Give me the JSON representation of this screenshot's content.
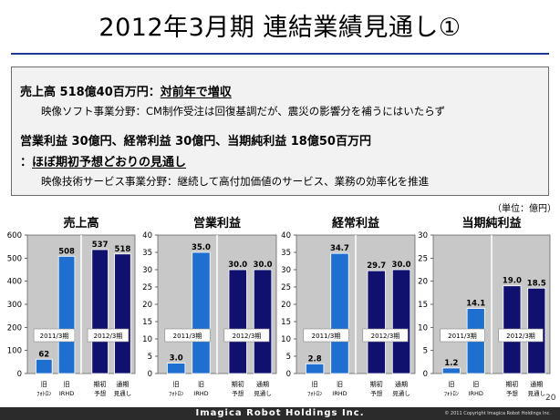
{
  "slide": {
    "title": "2012年3月期 連結業績見通し①",
    "unit": "（単位：億円）",
    "page_number": "20",
    "footer_brand": "Imagica Robot Holdings Inc.",
    "footer_copyright": "© 2011 Copyright Imagica Robot Holdings Inc."
  },
  "summary": {
    "line1_prefix": "売上高 518億40百万円：",
    "line1_emph": "対前年で増収",
    "line2": "映像ソフト事業分野：CM制作受注は回復基調だが、震災の影響分を補うにはいたらず",
    "line3": "営業利益 30億円、経常利益 30億円、当期純利益 18億50百万円",
    "line4_prefix": "：",
    "line4_emph": "ほぼ期初予想どおりの見通し",
    "line5": "映像技術サービス事業分野：継続して高付加価値のサービス、業務の効率化を推進"
  },
  "chart_data": [
    {
      "type": "bar",
      "title": "売上高",
      "ylim": [
        0,
        600
      ],
      "yticks": [
        0,
        100,
        200,
        300,
        400,
        500,
        600
      ],
      "period_labels": [
        "2011/3期",
        "2012/3期"
      ],
      "categories": [
        {
          "line1": "旧",
          "line2": "ﾌｫﾄﾛﾝ"
        },
        {
          "line1": "旧",
          "line2": "IRHD"
        },
        {
          "line1": "期初",
          "line2": "予想"
        },
        {
          "line1": "通期",
          "line2": "見通し"
        }
      ],
      "values": [
        62,
        508,
        537,
        518
      ],
      "value_labels": [
        "62",
        "508",
        "537",
        "518"
      ]
    },
    {
      "type": "bar",
      "title": "営業利益",
      "ylim": [
        0,
        40
      ],
      "yticks": [
        0,
        5,
        10,
        15,
        20,
        25,
        30,
        35,
        40
      ],
      "period_labels": [
        "2011/3期",
        "2012/3期"
      ],
      "categories": [
        {
          "line1": "旧",
          "line2": "ﾌｫﾄﾛﾝ"
        },
        {
          "line1": "旧",
          "line2": "IRHD"
        },
        {
          "line1": "期初",
          "line2": "予想"
        },
        {
          "line1": "通期",
          "line2": "見通し"
        }
      ],
      "values": [
        3.0,
        35.0,
        30.0,
        30.0
      ],
      "value_labels": [
        "3.0",
        "35.0",
        "30.0",
        "30.0"
      ]
    },
    {
      "type": "bar",
      "title": "経常利益",
      "ylim": [
        0,
        40
      ],
      "yticks": [
        0,
        5,
        10,
        15,
        20,
        25,
        30,
        35,
        40
      ],
      "period_labels": [
        "2011/3期",
        "2012/3期"
      ],
      "categories": [
        {
          "line1": "旧",
          "line2": "ﾌｫﾄﾛﾝ"
        },
        {
          "line1": "旧",
          "line2": "IRHD"
        },
        {
          "line1": "期初",
          "line2": "予想"
        },
        {
          "line1": "通期",
          "line2": "見通し"
        }
      ],
      "values": [
        2.8,
        34.7,
        29.7,
        30.0
      ],
      "value_labels": [
        "2.8",
        "34.7",
        "29.7",
        "30.0"
      ]
    },
    {
      "type": "bar",
      "title": "当期純利益",
      "ylim": [
        0,
        30
      ],
      "yticks": [
        0,
        5,
        10,
        15,
        20,
        25,
        30
      ],
      "period_labels": [
        "2011/3期",
        "2012/3期"
      ],
      "categories": [
        {
          "line1": "旧",
          "line2": "ﾌｫﾄﾛﾝ"
        },
        {
          "line1": "旧",
          "line2": "IRHD"
        },
        {
          "line1": "期初",
          "line2": "予想"
        },
        {
          "line1": "通期",
          "line2": "見通し"
        }
      ],
      "values": [
        1.2,
        14.1,
        19.0,
        18.5
      ],
      "value_labels": [
        "1.2",
        "14.1",
        "19.0",
        "18.5"
      ]
    }
  ],
  "colors": {
    "bar_2011": "#1f6fd1",
    "bar_2012": "#10106e",
    "plot_background": "#c8c8c8",
    "title_rule": "#1f3a93"
  }
}
